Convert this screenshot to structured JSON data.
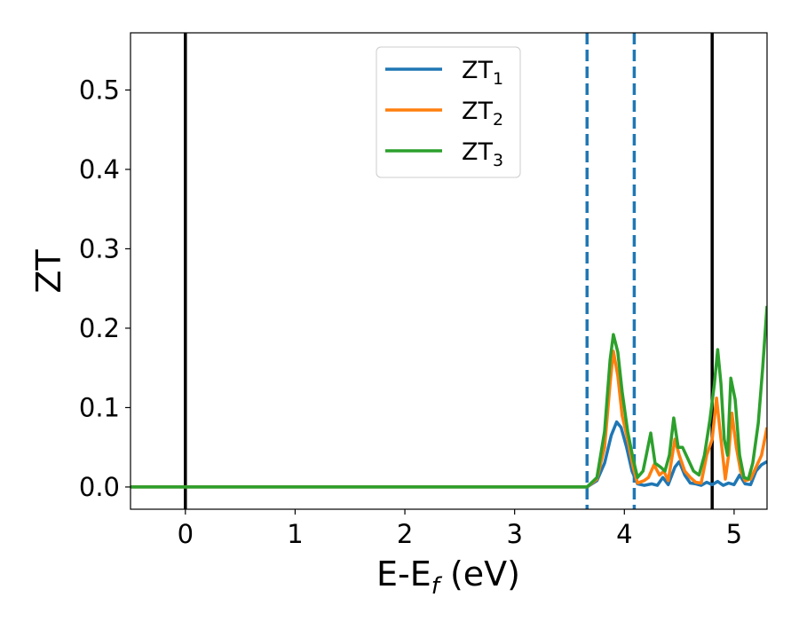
{
  "chart_data": {
    "type": "line",
    "xlabel": "E-E",
    "xlabel_sub": "f",
    "xlabel_unit": " (eV)",
    "ylabel": "ZT",
    "xlim": [
      -0.5,
      5.3
    ],
    "ylim": [
      -0.028,
      0.572
    ],
    "xticks": [
      0,
      1,
      2,
      3,
      4,
      5
    ],
    "xtick_labels": [
      "0",
      "1",
      "2",
      "3",
      "4",
      "5"
    ],
    "yticks": [
      0.0,
      0.1,
      0.2,
      0.3,
      0.4,
      0.5
    ],
    "ytick_labels": [
      "0.0",
      "0.1",
      "0.2",
      "0.3",
      "0.4",
      "0.5"
    ],
    "grid": false,
    "legend_position": "upper-center",
    "vertical_lines": [
      {
        "x": 0.0,
        "style": "solid",
        "color": "#000000"
      },
      {
        "x": 3.66,
        "style": "dashed",
        "color": "#1f77b4"
      },
      {
        "x": 4.09,
        "style": "dashed",
        "color": "#1f77b4"
      },
      {
        "x": 4.8,
        "style": "solid",
        "color": "#000000"
      }
    ],
    "series": [
      {
        "name": "ZT",
        "subscript": "1",
        "color": "#1f77b4",
        "points": [
          [
            -0.5,
            0
          ],
          [
            3.6,
            0
          ],
          [
            3.66,
            0.0
          ],
          [
            3.75,
            0.008
          ],
          [
            3.82,
            0.03
          ],
          [
            3.88,
            0.065
          ],
          [
            3.93,
            0.082
          ],
          [
            3.97,
            0.075
          ],
          [
            4.02,
            0.05
          ],
          [
            4.07,
            0.02
          ],
          [
            4.12,
            0.004
          ],
          [
            4.18,
            0.002
          ],
          [
            4.25,
            0.004
          ],
          [
            4.3,
            0.002
          ],
          [
            4.35,
            0.012
          ],
          [
            4.4,
            0.003
          ],
          [
            4.46,
            0.025
          ],
          [
            4.5,
            0.032
          ],
          [
            4.55,
            0.015
          ],
          [
            4.6,
            0.005
          ],
          [
            4.65,
            0.004
          ],
          [
            4.7,
            0.002
          ],
          [
            4.75,
            0.006
          ],
          [
            4.8,
            0.003
          ],
          [
            4.85,
            0.007
          ],
          [
            4.9,
            0.002
          ],
          [
            4.95,
            0.005
          ],
          [
            5.0,
            0.003
          ],
          [
            5.05,
            0.015
          ],
          [
            5.1,
            0.004
          ],
          [
            5.15,
            0.003
          ],
          [
            5.2,
            0.02
          ],
          [
            5.25,
            0.028
          ],
          [
            5.3,
            0.032
          ]
        ]
      },
      {
        "name": "ZT",
        "subscript": "2",
        "color": "#ff7f0e",
        "points": [
          [
            -0.5,
            0
          ],
          [
            3.6,
            0
          ],
          [
            3.66,
            0.0
          ],
          [
            3.75,
            0.01
          ],
          [
            3.82,
            0.05
          ],
          [
            3.87,
            0.13
          ],
          [
            3.9,
            0.171
          ],
          [
            3.94,
            0.14
          ],
          [
            3.98,
            0.09
          ],
          [
            4.03,
            0.06
          ],
          [
            4.08,
            0.025
          ],
          [
            4.12,
            0.005
          ],
          [
            4.18,
            0.008
          ],
          [
            4.22,
            0.012
          ],
          [
            4.27,
            0.028
          ],
          [
            4.32,
            0.015
          ],
          [
            4.36,
            0.02
          ],
          [
            4.4,
            0.008
          ],
          [
            4.46,
            0.06
          ],
          [
            4.5,
            0.04
          ],
          [
            4.55,
            0.02
          ],
          [
            4.6,
            0.012
          ],
          [
            4.65,
            0.006
          ],
          [
            4.7,
            0.005
          ],
          [
            4.75,
            0.04
          ],
          [
            4.8,
            0.06
          ],
          [
            4.84,
            0.112
          ],
          [
            4.88,
            0.06
          ],
          [
            4.92,
            0.01
          ],
          [
            4.95,
            0.04
          ],
          [
            4.98,
            0.093
          ],
          [
            5.02,
            0.05
          ],
          [
            5.06,
            0.02
          ],
          [
            5.1,
            0.008
          ],
          [
            5.15,
            0.01
          ],
          [
            5.2,
            0.025
          ],
          [
            5.25,
            0.04
          ],
          [
            5.3,
            0.075
          ]
        ]
      },
      {
        "name": "ZT",
        "subscript": "3",
        "color": "#2ca02c",
        "points": [
          [
            -0.5,
            0
          ],
          [
            3.6,
            0
          ],
          [
            3.66,
            0.0
          ],
          [
            3.75,
            0.012
          ],
          [
            3.82,
            0.07
          ],
          [
            3.87,
            0.16
          ],
          [
            3.9,
            0.192
          ],
          [
            3.94,
            0.17
          ],
          [
            3.98,
            0.12
          ],
          [
            4.03,
            0.07
          ],
          [
            4.08,
            0.035
          ],
          [
            4.12,
            0.012
          ],
          [
            4.17,
            0.02
          ],
          [
            4.2,
            0.04
          ],
          [
            4.24,
            0.068
          ],
          [
            4.28,
            0.03
          ],
          [
            4.33,
            0.025
          ],
          [
            4.37,
            0.02
          ],
          [
            4.41,
            0.04
          ],
          [
            4.45,
            0.087
          ],
          [
            4.49,
            0.05
          ],
          [
            4.53,
            0.05
          ],
          [
            4.58,
            0.035
          ],
          [
            4.63,
            0.02
          ],
          [
            4.68,
            0.015
          ],
          [
            4.73,
            0.04
          ],
          [
            4.78,
            0.085
          ],
          [
            4.82,
            0.13
          ],
          [
            4.85,
            0.173
          ],
          [
            4.88,
            0.13
          ],
          [
            4.91,
            0.06
          ],
          [
            4.94,
            0.04
          ],
          [
            4.97,
            0.137
          ],
          [
            5.01,
            0.11
          ],
          [
            5.05,
            0.04
          ],
          [
            5.09,
            0.012
          ],
          [
            5.13,
            0.01
          ],
          [
            5.17,
            0.03
          ],
          [
            5.22,
            0.08
          ],
          [
            5.26,
            0.15
          ],
          [
            5.3,
            0.228
          ]
        ]
      }
    ]
  }
}
